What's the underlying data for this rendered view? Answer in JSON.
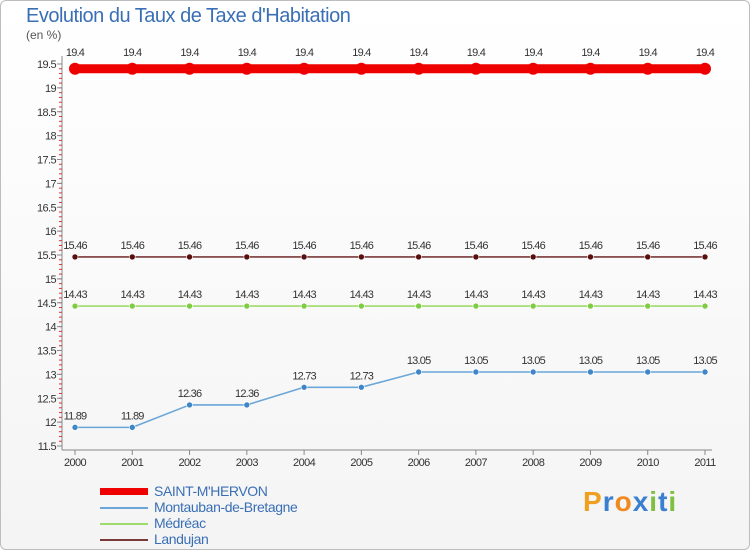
{
  "title": "Evolution du Taux de Taxe d'Habitation",
  "unit_label": "(en %)",
  "brand": {
    "letters": [
      "P",
      "r",
      "o",
      "x",
      "i",
      "t",
      "i"
    ],
    "colors": [
      "#f0a020",
      "#3a7fd0",
      "#f08a20",
      "#3a7fd0",
      "#80c040",
      "#3a7fd0",
      "#80c040"
    ]
  },
  "chart_data": {
    "type": "line",
    "title": "Evolution du Taux de Taxe d'Habitation",
    "ylabel": "(en %)",
    "xlabel": "",
    "categories": [
      "2000",
      "2001",
      "2002",
      "2003",
      "2004",
      "2005",
      "2006",
      "2007",
      "2008",
      "2009",
      "2010",
      "2011"
    ],
    "ylim": [
      11.5,
      19.5
    ],
    "yticks": [
      "11.5",
      "12",
      "12.5",
      "13",
      "13.5",
      "14",
      "14.5",
      "15",
      "15.5",
      "16",
      "16.5",
      "17",
      "17.5",
      "18",
      "18.5",
      "19",
      "19.5"
    ],
    "grid": false,
    "legend_position": "bottom-left",
    "series": [
      {
        "name": "SAINT-M'HERVON",
        "color": "#ee0000",
        "marker": "#ee0000",
        "thick": true,
        "values": [
          19.4,
          19.4,
          19.4,
          19.4,
          19.4,
          19.4,
          19.4,
          19.4,
          19.4,
          19.4,
          19.4,
          19.4
        ],
        "labels": [
          "19.4",
          "19.4",
          "19.4",
          "19.4",
          "19.4",
          "19.4",
          "19.4",
          "19.4",
          "19.4",
          "19.4",
          "19.4",
          "19.4"
        ]
      },
      {
        "name": "Montauban-de-Bretagne",
        "color": "#6aa6d8",
        "marker": "#3e86c8",
        "thick": false,
        "values": [
          11.89,
          11.89,
          12.36,
          12.36,
          12.73,
          12.73,
          13.05,
          13.05,
          13.05,
          13.05,
          13.05,
          13.05
        ],
        "labels": [
          "11.89",
          "11.89",
          "12.36",
          "12.36",
          "12.73",
          "12.73",
          "13.05",
          "13.05",
          "13.05",
          "13.05",
          "13.05",
          "13.05"
        ]
      },
      {
        "name": "Médréac",
        "color": "#9edb6a",
        "marker": "#7fcc44",
        "thick": false,
        "values": [
          14.43,
          14.43,
          14.43,
          14.43,
          14.43,
          14.43,
          14.43,
          14.43,
          14.43,
          14.43,
          14.43,
          14.43
        ],
        "labels": [
          "14.43",
          "14.43",
          "14.43",
          "14.43",
          "14.43",
          "14.43",
          "14.43",
          "14.43",
          "14.43",
          "14.43",
          "14.43",
          "14.43"
        ]
      },
      {
        "name": "Landujan",
        "color": "#7a3a3a",
        "marker": "#5a0f0f",
        "thick": false,
        "values": [
          15.46,
          15.46,
          15.46,
          15.46,
          15.46,
          15.46,
          15.46,
          15.46,
          15.46,
          15.46,
          15.46,
          15.46
        ],
        "labels": [
          "15.46",
          "15.46",
          "15.46",
          "15.46",
          "15.46",
          "15.46",
          "15.46",
          "15.46",
          "15.46",
          "15.46",
          "15.46",
          "15.46"
        ]
      }
    ]
  }
}
